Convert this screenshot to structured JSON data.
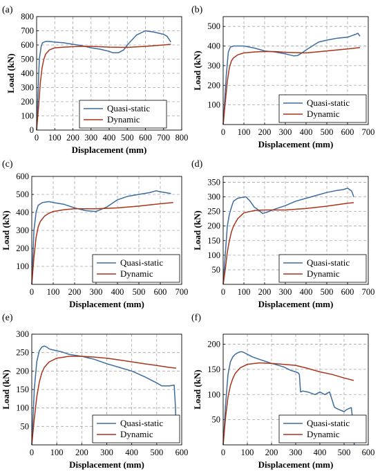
{
  "figure": {
    "series_colors": {
      "quasi_static": "#3b6c9e",
      "dynamic": "#a8341a"
    },
    "grid_color": "#a6a6a6"
  },
  "chart_data": [
    {
      "panel": "(a)",
      "type": "line",
      "xlabel": "Displacement (mm)",
      "ylabel": "Load (kN)",
      "xlim": [
        0,
        800
      ],
      "ylim": [
        0,
        800
      ],
      "xticks": [
        "0",
        "100",
        "200",
        "300",
        "400",
        "500",
        "600",
        "700",
        "800"
      ],
      "yticks": [
        "0",
        "100",
        "200",
        "300",
        "400",
        "500",
        "600",
        "700",
        "800"
      ],
      "grid": true,
      "legend": "bottom-left",
      "series": [
        {
          "name": "Quasi-static",
          "color": "#3b6c9e",
          "x": [
            0,
            15,
            25,
            32,
            40,
            50,
            70,
            100,
            150,
            200,
            250,
            300,
            350,
            400,
            420,
            450,
            480,
            500,
            550,
            600,
            650,
            700,
            720,
            740
          ],
          "y": [
            0,
            500,
            590,
            615,
            620,
            625,
            625,
            620,
            615,
            605,
            595,
            580,
            570,
            555,
            545,
            545,
            565,
            600,
            670,
            700,
            690,
            675,
            660,
            620
          ]
        },
        {
          "name": "Dynamic",
          "color": "#a8341a",
          "x": [
            0,
            10,
            20,
            30,
            40,
            50,
            70,
            100,
            150,
            200,
            250,
            300,
            400,
            500,
            600,
            700,
            740
          ],
          "y": [
            0,
            150,
            330,
            440,
            500,
            535,
            565,
            580,
            585,
            588,
            590,
            590,
            585,
            583,
            590,
            600,
            605
          ]
        }
      ]
    },
    {
      "panel": "(b)",
      "type": "line",
      "xlabel": "Displacement (mm)",
      "ylabel": "Load (kN)",
      "xlim": [
        0,
        700
      ],
      "ylim": [
        0,
        550
      ],
      "xticks": [
        "0",
        "100",
        "200",
        "300",
        "400",
        "500",
        "600",
        "700"
      ],
      "yticks": [
        "100",
        "200",
        "300",
        "400",
        "500"
      ],
      "grid": true,
      "legend": "bottom-right",
      "series": [
        {
          "name": "Quasi-static",
          "color": "#3b6c9e",
          "x": [
            0,
            15,
            25,
            35,
            50,
            100,
            150,
            200,
            250,
            300,
            320,
            340,
            360,
            380,
            400,
            430,
            460,
            500,
            550,
            600,
            640,
            650,
            660
          ],
          "y": [
            0,
            250,
            370,
            395,
            400,
            400,
            390,
            375,
            370,
            360,
            355,
            350,
            352,
            365,
            380,
            400,
            420,
            430,
            440,
            445,
            460,
            465,
            450
          ]
        },
        {
          "name": "Dynamic",
          "color": "#a8341a",
          "x": [
            0,
            10,
            20,
            30,
            40,
            50,
            70,
            100,
            150,
            200,
            250,
            300,
            400,
            500,
            600,
            660
          ],
          "y": [
            0,
            110,
            220,
            290,
            325,
            340,
            355,
            365,
            370,
            372,
            372,
            368,
            365,
            375,
            385,
            392
          ]
        }
      ]
    },
    {
      "panel": "(c)",
      "type": "line",
      "xlabel": "Displacement (mm)",
      "ylabel": "Load (kN)",
      "xlim": [
        0,
        700
      ],
      "ylim": [
        0,
        600
      ],
      "xticks": [
        "0",
        "100",
        "200",
        "300",
        "400",
        "500",
        "600",
        "700"
      ],
      "yticks": [
        "100",
        "200",
        "300",
        "400",
        "500",
        "600"
      ],
      "grid": true,
      "legend": "bottom-right",
      "series": [
        {
          "name": "Quasi-static",
          "color": "#3b6c9e",
          "x": [
            0,
            10,
            20,
            30,
            50,
            80,
            100,
            150,
            200,
            250,
            300,
            350,
            400,
            450,
            500,
            550,
            580,
            600,
            650
          ],
          "y": [
            0,
            300,
            400,
            440,
            455,
            460,
            455,
            445,
            425,
            410,
            405,
            430,
            470,
            490,
            500,
            510,
            520,
            515,
            505
          ]
        },
        {
          "name": "Dynamic",
          "color": "#a8341a",
          "x": [
            0,
            10,
            20,
            30,
            40,
            60,
            80,
            100,
            150,
            200,
            300,
            400,
            500,
            600,
            660
          ],
          "y": [
            0,
            150,
            260,
            320,
            350,
            380,
            395,
            405,
            415,
            420,
            420,
            425,
            435,
            448,
            455
          ]
        }
      ]
    },
    {
      "panel": "(d)",
      "type": "line",
      "xlabel": "Displacement (mm)",
      "ylabel": "Load (kN)",
      "xlim": [
        0,
        700
      ],
      "ylim": [
        0,
        370
      ],
      "xticks": [
        "0",
        "100",
        "200",
        "300",
        "400",
        "500",
        "600",
        "700"
      ],
      "yticks": [
        "50",
        "100",
        "150",
        "200",
        "250",
        "300",
        "350"
      ],
      "grid": true,
      "legend": "bottom-right",
      "series": [
        {
          "name": "Quasi-static",
          "color": "#3b6c9e",
          "x": [
            0,
            10,
            20,
            30,
            40,
            50,
            70,
            90,
            110,
            130,
            150,
            170,
            190,
            210,
            250,
            300,
            350,
            400,
            450,
            500,
            550,
            580,
            600,
            620,
            630
          ],
          "y": [
            0,
            100,
            200,
            240,
            265,
            285,
            295,
            298,
            300,
            285,
            265,
            255,
            243,
            247,
            258,
            270,
            285,
            295,
            305,
            315,
            322,
            325,
            330,
            320,
            300
          ]
        },
        {
          "name": "Dynamic",
          "color": "#a8341a",
          "x": [
            0,
            10,
            20,
            30,
            40,
            50,
            70,
            100,
            150,
            200,
            300,
            400,
            500,
            600,
            630
          ],
          "y": [
            0,
            50,
            110,
            150,
            180,
            200,
            225,
            245,
            253,
            255,
            255,
            260,
            268,
            278,
            280
          ]
        }
      ]
    },
    {
      "panel": "(e)",
      "type": "line",
      "xlabel": "Displacement (mm)",
      "ylabel": "Load (kN)",
      "xlim": [
        0,
        600
      ],
      "ylim": [
        0,
        300
      ],
      "xticks": [
        "0",
        "100",
        "200",
        "300",
        "400",
        "500",
        "600"
      ],
      "yticks": [
        "50",
        "100",
        "150",
        "200",
        "250",
        "300"
      ],
      "grid": true,
      "legend": "bottom-right",
      "series": [
        {
          "name": "Quasi-static",
          "color": "#3b6c9e",
          "x": [
            0,
            10,
            20,
            30,
            40,
            50,
            60,
            70,
            80,
            100,
            120,
            150,
            200,
            250,
            300,
            350,
            400,
            450,
            500,
            520,
            550,
            570,
            575,
            578
          ],
          "y": [
            0,
            150,
            225,
            255,
            265,
            268,
            265,
            260,
            258,
            255,
            252,
            245,
            240,
            232,
            220,
            210,
            200,
            185,
            168,
            160,
            160,
            162,
            100,
            30
          ]
        },
        {
          "name": "Dynamic",
          "color": "#a8341a",
          "x": [
            0,
            10,
            20,
            30,
            40,
            50,
            70,
            100,
            150,
            200,
            250,
            300,
            350,
            400,
            450,
            500,
            550,
            578
          ],
          "y": [
            0,
            70,
            130,
            170,
            195,
            210,
            225,
            235,
            240,
            240,
            238,
            235,
            230,
            225,
            220,
            215,
            210,
            208
          ]
        }
      ]
    },
    {
      "panel": "(f)",
      "type": "line",
      "xlabel": "Displacement (mm)",
      "ylabel": "Load (kN)",
      "xlim": [
        0,
        600
      ],
      "ylim": [
        0,
        220
      ],
      "xticks": [
        "0",
        "100",
        "200",
        "300",
        "400",
        "500",
        "600"
      ],
      "yticks": [
        "50",
        "100",
        "150",
        "200"
      ],
      "grid": true,
      "legend": "bottom-right",
      "series": [
        {
          "name": "Quasi-static",
          "color": "#3b6c9e",
          "x": [
            0,
            10,
            20,
            30,
            40,
            50,
            60,
            70,
            80,
            100,
            120,
            150,
            200,
            250,
            280,
            300,
            310,
            315,
            320,
            330,
            350,
            380,
            400,
            420,
            440,
            450,
            460,
            470,
            480,
            490,
            500,
            510,
            520,
            530,
            540,
            542
          ],
          "y": [
            0,
            80,
            140,
            165,
            175,
            180,
            183,
            185,
            185,
            180,
            175,
            170,
            162,
            155,
            148,
            145,
            143,
            140,
            105,
            107,
            105,
            100,
            105,
            100,
            105,
            90,
            75,
            72,
            70,
            68,
            66,
            70,
            72,
            74,
            30,
            0
          ]
        },
        {
          "name": "Dynamic",
          "color": "#a8341a",
          "x": [
            0,
            10,
            20,
            30,
            40,
            50,
            70,
            100,
            150,
            200,
            250,
            300,
            350,
            400,
            450,
            500,
            540
          ],
          "y": [
            0,
            55,
            95,
            118,
            132,
            142,
            153,
            160,
            163,
            162,
            160,
            158,
            152,
            145,
            140,
            133,
            128
          ]
        }
      ]
    }
  ]
}
